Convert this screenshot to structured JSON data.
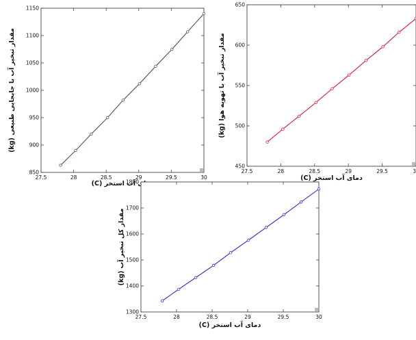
{
  "chart_data": [
    {
      "type": "line",
      "xlabel": "دمای آب استخر (C)",
      "ylabel": "مقدار تبخیر آب با جابجایی طبیعی (kg)",
      "xlim": [
        27.5,
        30
      ],
      "ylim": [
        850,
        1150
      ],
      "xticks": [
        "27.5",
        "28",
        "28.5",
        "29",
        "29.5",
        "30"
      ],
      "yticks": [
        "850",
        "900",
        "950",
        "1000",
        "1050",
        "1100",
        "1150"
      ],
      "grid": false,
      "line_color": "#4d6650",
      "series": [
        {
          "x": [
            27.8,
            28.03,
            28.27,
            28.52,
            28.76,
            29.01,
            29.26,
            29.51,
            29.75,
            30.0
          ],
          "y": [
            863,
            890,
            920,
            950,
            982,
            1012,
            1044,
            1075,
            1107,
            1140
          ]
        }
      ]
    },
    {
      "type": "line",
      "xlabel": "دمای آب استخر (C)",
      "ylabel": "مقدار تبخیر آب با تهویه هوا (kg)",
      "xlim": [
        27.5,
        30
      ],
      "ylim": [
        450,
        650
      ],
      "xticks": [
        "27.5",
        "28",
        "28.5",
        "29",
        "29.5",
        "30"
      ],
      "yticks": [
        "450",
        "500",
        "550",
        "600",
        "650"
      ],
      "grid": false,
      "line_color": "#e2233d",
      "series": [
        {
          "x": [
            27.8,
            28.03,
            28.27,
            28.52,
            28.76,
            29.01,
            29.26,
            29.51,
            29.75,
            30.0
          ],
          "y": [
            480,
            496,
            512,
            529,
            546,
            563,
            581,
            598,
            616,
            633
          ]
        }
      ]
    },
    {
      "type": "line",
      "xlabel": "دمای آب استخر (C)",
      "ylabel": "مقدار کل تبخیر آب (kg)",
      "xlim": [
        27.5,
        30
      ],
      "ylim": [
        1300,
        1800
      ],
      "xticks": [
        "27.5",
        "28",
        "28.5",
        "29",
        "29.5",
        "30"
      ],
      "yticks": [
        "1300",
        "1400",
        "1500",
        "1600",
        "1700",
        "1800"
      ],
      "grid": false,
      "line_color": "#3a3ad0",
      "series": [
        {
          "x": [
            27.8,
            28.03,
            28.27,
            28.52,
            28.76,
            29.01,
            29.26,
            29.51,
            29.75,
            30.0
          ],
          "y": [
            1343,
            1387,
            1432,
            1479,
            1528,
            1576,
            1625,
            1674,
            1723,
            1773
          ]
        }
      ]
    }
  ]
}
